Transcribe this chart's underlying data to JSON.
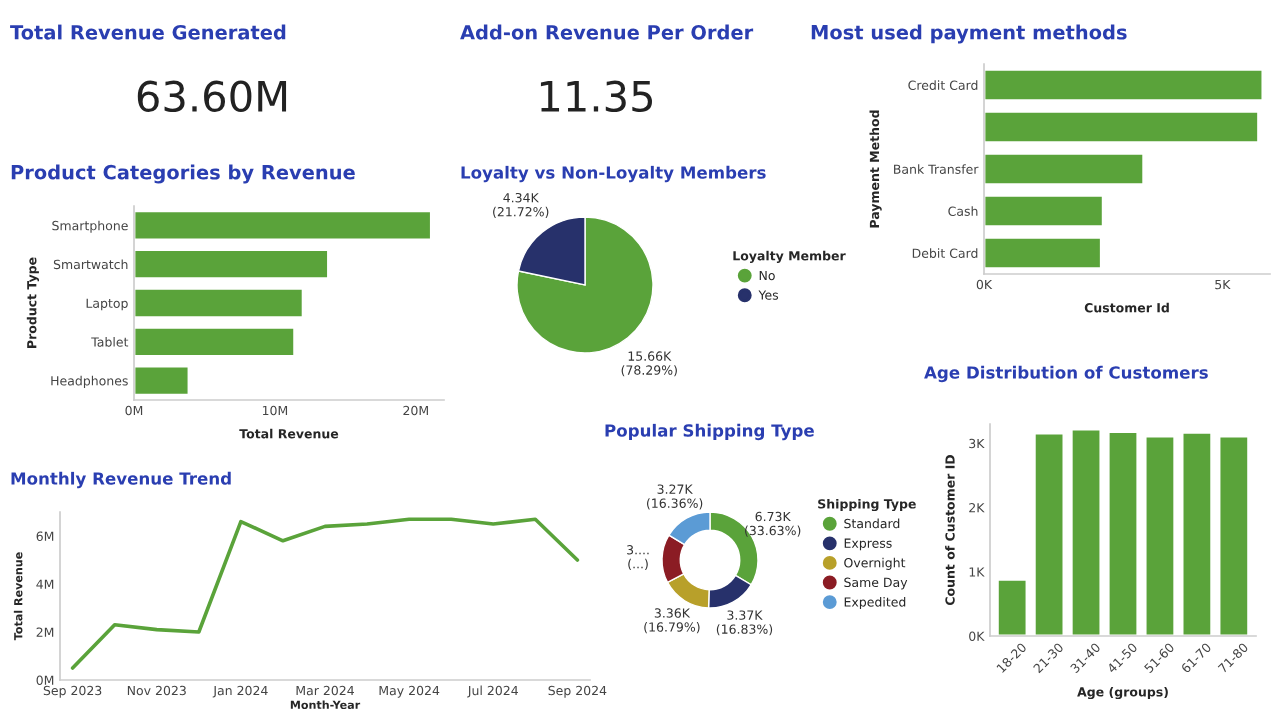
{
  "chart_data": [
    {
      "type": "other",
      "title": "Total Revenue Generated",
      "annotations": [
        "63.60M"
      ]
    },
    {
      "type": "other",
      "title": "Add-on Revenue Per Order",
      "annotations": [
        "11.35"
      ]
    },
    {
      "type": "bar",
      "orientation": "horizontal",
      "title": "Most used payment methods",
      "categories": [
        "Credit Card",
        null,
        "Bank Transfer",
        "Cash",
        "Debit Card"
      ],
      "values": [
        5.85,
        5.76,
        3.35,
        2.5,
        2.46
      ],
      "color": "#5aa33a",
      "xlim": [
        0,
        6
      ],
      "xticks": [
        {
          "value": 0,
          "label": "0K"
        },
        {
          "value": 5,
          "label": "5K"
        }
      ],
      "xlabel": "Customer Id",
      "ylabel": "Payment Method"
    },
    {
      "type": "bar",
      "orientation": "horizontal",
      "title": "Product Categories by Revenue",
      "categories": [
        "Smartphone",
        "Smartwatch",
        "Laptop",
        "Tablet",
        "Headphones"
      ],
      "values": [
        21.1,
        13.8,
        12.0,
        11.4,
        3.9
      ],
      "color": "#5aa33a",
      "xlim": [
        0,
        22
      ],
      "xticks": [
        {
          "value": 0,
          "label": "0M"
        },
        {
          "value": 10,
          "label": "10M"
        },
        {
          "value": 20,
          "label": "20M"
        }
      ],
      "xlabel": "Total Revenue",
      "ylabel": "Product Type"
    },
    {
      "type": "pie",
      "title": "Loyalty vs Non-Loyalty Members",
      "categories": [
        "No",
        "Yes"
      ],
      "values": [
        15660,
        4340
      ],
      "colors": [
        "#5aa33a",
        "#27316b"
      ],
      "value_labels": [
        "15.66K\n(78.29%)",
        "4.34K\n(21.72%)"
      ],
      "legend": "right",
      "legend_title": "Loyalty Member"
    },
    {
      "type": "line",
      "title": "Monthly Revenue Trend",
      "categories": [
        "Sep 2023",
        null,
        "Nov 2023",
        null,
        "Jan 2024",
        null,
        "Mar 2024",
        null,
        "May 2024",
        null,
        "Jul 2024",
        null,
        "Sep 2024"
      ],
      "values": [
        0.5,
        2.3,
        2.1,
        2.0,
        6.6,
        5.8,
        6.4,
        6.5,
        6.7,
        6.7,
        6.5,
        6.7,
        5.0
      ],
      "color": "#5aa33a",
      "ylim": [
        0,
        7
      ],
      "yticks": [
        {
          "value": 0,
          "label": "0M"
        },
        {
          "value": 2,
          "label": "2M"
        },
        {
          "value": 4,
          "label": "4M"
        },
        {
          "value": 6,
          "label": "6M"
        }
      ],
      "xlabel": "Month-Year",
      "ylabel": "Total Revenue"
    },
    {
      "type": "donut",
      "title": "Popular Shipping Type",
      "categories": [
        "Standard",
        "Express",
        "Overnight",
        "Same Day",
        "Expedited"
      ],
      "values": [
        6730,
        3370,
        3360,
        3280,
        3270
      ],
      "colors": [
        "#5aa33a",
        "#27316b",
        "#b8a02a",
        "#8b1c24",
        "#5b9bd5"
      ],
      "value_labels": [
        "6.73K\n(33.63%)",
        "3.37K\n(16.83%)",
        "3.36K\n(16.79%)",
        null,
        "3.27K\n(16.36%)"
      ],
      "annotations": [
        "3....\n(...)"
      ],
      "legend": "right",
      "legend_title": "Shipping Type"
    },
    {
      "type": "bar",
      "title": "Age Distribution of Customers",
      "categories": [
        "18-20",
        "21-30",
        "31-40",
        "41-50",
        "51-60",
        "61-70",
        "71-80"
      ],
      "values": [
        0.88,
        3.16,
        3.22,
        3.18,
        3.11,
        3.17,
        3.11
      ],
      "color": "#5aa33a",
      "ylim": [
        0,
        3.3
      ],
      "yticks": [
        {
          "value": 0,
          "label": "0K"
        },
        {
          "value": 1,
          "label": "1K"
        },
        {
          "value": 2,
          "label": "2K"
        },
        {
          "value": 3,
          "label": "3K"
        }
      ],
      "xlabel": "Age (groups)",
      "ylabel": "Count of Customer ID"
    }
  ]
}
